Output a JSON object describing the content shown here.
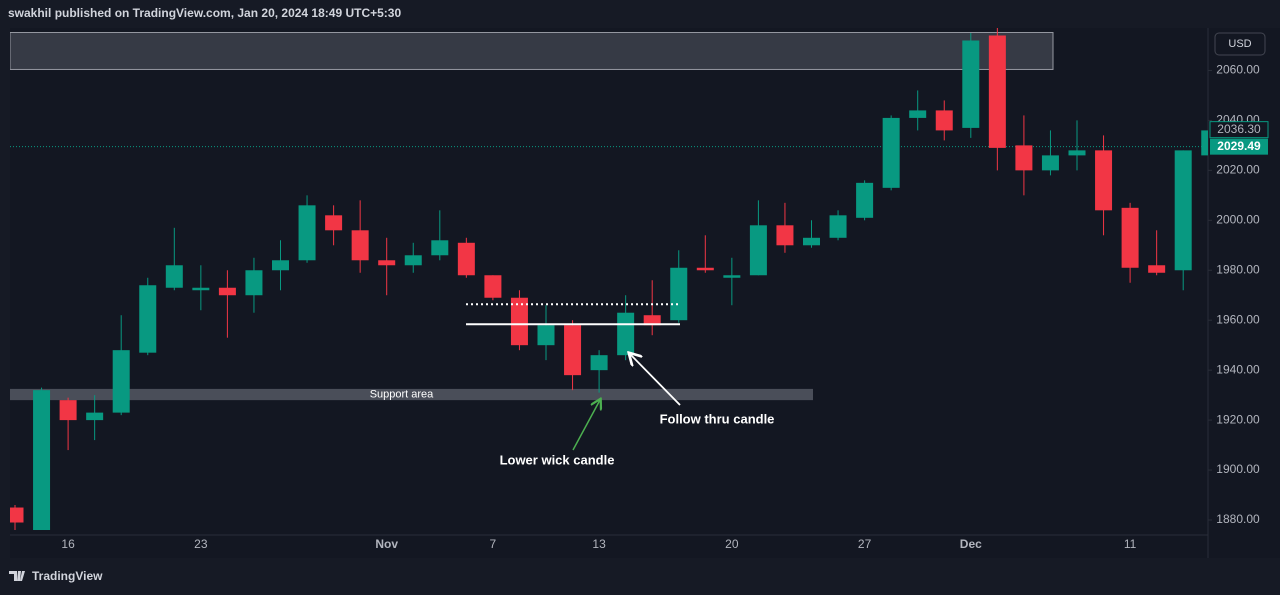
{
  "header": "swakhil published on TradingView.com, Jan 20, 2024 18:49 UTC+5:30",
  "brand": "TradingView",
  "chart_data": {
    "type": "candlestick",
    "currency": "USD",
    "categories": [
      null,
      null,
      "16",
      null,
      null,
      null,
      null,
      "23",
      null,
      null,
      null,
      null,
      null,
      null,
      "Nov",
      null,
      null,
      null,
      "7",
      null,
      null,
      null,
      "13",
      null,
      null,
      null,
      null,
      "20",
      null,
      null,
      null,
      null,
      "27",
      null,
      null,
      null,
      "Dec",
      null,
      null,
      null,
      null,
      null,
      "11",
      null,
      null,
      null
    ],
    "open": [
      1885,
      1876,
      1928,
      1920,
      1923,
      1947,
      1973,
      1972,
      1973,
      1970,
      1980,
      1984,
      2002,
      1996,
      1984,
      1982,
      1986,
      1991,
      1978,
      1969,
      1950,
      1958,
      1940,
      1946,
      1962,
      1960,
      1981,
      1977,
      1978,
      1998,
      1990,
      1993,
      2001,
      2013,
      2041,
      2044,
      2037,
      2074,
      2030,
      2020,
      2026,
      2028,
      2005,
      1982,
      1980,
      2026
    ],
    "high": [
      1886,
      1933,
      1929,
      1930,
      1962,
      1977,
      1997,
      1982,
      1980,
      1985,
      1992,
      2010,
      2006,
      2008,
      1993,
      1991,
      2004,
      1993,
      1978,
      1972,
      1966,
      1960,
      1948,
      1970,
      1976,
      1988,
      1994,
      1985,
      2008,
      2007,
      2000,
      2004,
      2016,
      2042,
      2052,
      2048,
      2075,
      2077,
      2042,
      2036,
      2040,
      2034,
      2007,
      1996,
      2028,
      2037
    ],
    "low": [
      1876,
      1876,
      1908,
      1912,
      1922,
      1946,
      1972,
      1964,
      1953,
      1963,
      1972,
      1983,
      1990,
      1979,
      1970,
      1979,
      1984,
      1977,
      1968,
      1948,
      1944,
      1932,
      1931,
      1944,
      1954,
      1959,
      1979,
      1966,
      1978,
      1987,
      1989,
      1992,
      2000,
      2012,
      2036,
      2032,
      2033,
      2020,
      2010,
      2018,
      2020,
      1994,
      1975,
      1978,
      1972,
      2026
    ],
    "close": [
      1879,
      1932,
      1920,
      1923,
      1948,
      1974,
      1982,
      1973,
      1970,
      1980,
      1984,
      2006,
      1996,
      1984,
      1982,
      1986,
      1992,
      1978,
      1969,
      1950,
      1958,
      1938,
      1946,
      1963,
      1958,
      1981,
      1980,
      1978,
      1998,
      1990,
      1993,
      2002,
      2015,
      2041,
      2044,
      2036,
      2072,
      2029,
      2020,
      2026,
      2028,
      2004,
      1981,
      1979,
      2028,
      2036
    ],
    "up_color": "#089981",
    "down_color": "#f23645",
    "ylim": [
      1874,
      2077
    ],
    "yticks": [
      {
        "value": 1880,
        "label": "1880.00"
      },
      {
        "value": 1900,
        "label": "1900.00"
      },
      {
        "value": 1920,
        "label": "1920.00"
      },
      {
        "value": 1940,
        "label": "1940.00"
      },
      {
        "value": 1960,
        "label": "1960.00"
      },
      {
        "value": 1980,
        "label": "1980.00"
      },
      {
        "value": 2000,
        "label": "2000.00"
      },
      {
        "value": 2020,
        "label": "2020.00"
      },
      {
        "value": 2040,
        "label": "2040.00"
      },
      {
        "value": 2060,
        "label": "2060.00"
      }
    ],
    "grid": false,
    "price_marker": {
      "value": 2036.3,
      "label": "2036.30"
    },
    "price_line": {
      "value": 2029.49,
      "label": "2029.49",
      "color": "#089981"
    },
    "zones": [
      {
        "label": "Support area",
        "from": 1928,
        "to": 1932.5
      },
      {
        "from": 2060.4,
        "to": 2075.2
      }
    ],
    "levels": [
      {
        "value": 1958.4,
        "style": "solid"
      },
      {
        "value": 1966.4,
        "style": "dotted"
      }
    ],
    "annotations": [
      "Lower wick candle",
      "Follow thru candle"
    ]
  }
}
